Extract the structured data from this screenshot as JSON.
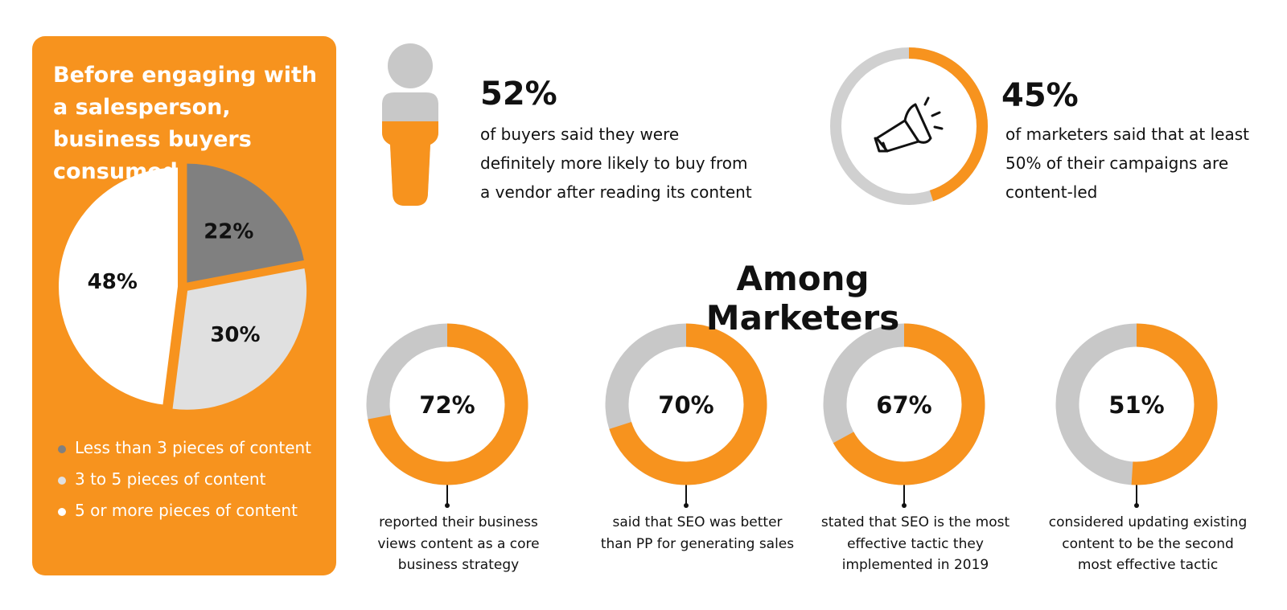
{
  "chart_data": [
    {
      "type": "pie",
      "title": "Before engaging with a salesperson, business buyers consumed",
      "categories": [
        "Less than 3 pieces of content",
        "3 to 5 pieces of content",
        "5 or more pieces of content"
      ],
      "values": [
        22,
        30,
        48
      ],
      "value_labels": [
        "22%",
        "30%",
        "48%"
      ],
      "colors": [
        "#808080",
        "#e0e0e0",
        "#ffffff"
      ]
    },
    {
      "type": "pictograph",
      "values": [
        52
      ],
      "value_labels": [
        "52%"
      ],
      "caption": "of buyers said they were definitely more likely to buy from a vendor after reading its content",
      "color": "#f7931e",
      "track_color": "#c8c8c8"
    },
    {
      "type": "donut",
      "values": [
        45
      ],
      "value_labels": [
        "45%"
      ],
      "caption": "of marketers said that at least 50% of their campaigns are content-led",
      "color": "#f7931e",
      "track_color": "#d0d0d0"
    },
    {
      "type": "donut",
      "values": [
        72
      ],
      "value_labels": [
        "72%"
      ],
      "caption": "reported their business views content as a core business strategy",
      "color": "#f7931e",
      "track_color": "#c8c8c8"
    },
    {
      "type": "donut",
      "values": [
        70
      ],
      "value_labels": [
        "70%"
      ],
      "caption": "said that SEO was better than PP for generating sales",
      "color": "#f7931e",
      "track_color": "#c8c8c8"
    },
    {
      "type": "donut",
      "values": [
        67
      ],
      "value_labels": [
        "67%"
      ],
      "caption": "stated that SEO is the most effective tactic they implemented in 2019",
      "color": "#f7931e",
      "track_color": "#c8c8c8"
    },
    {
      "type": "donut",
      "values": [
        51
      ],
      "value_labels": [
        "51%"
      ],
      "caption": "considered updating existing content to be the second most effective tactic",
      "color": "#f7931e",
      "track_color": "#c8c8c8"
    }
  ],
  "section_title": "Among Marketers"
}
